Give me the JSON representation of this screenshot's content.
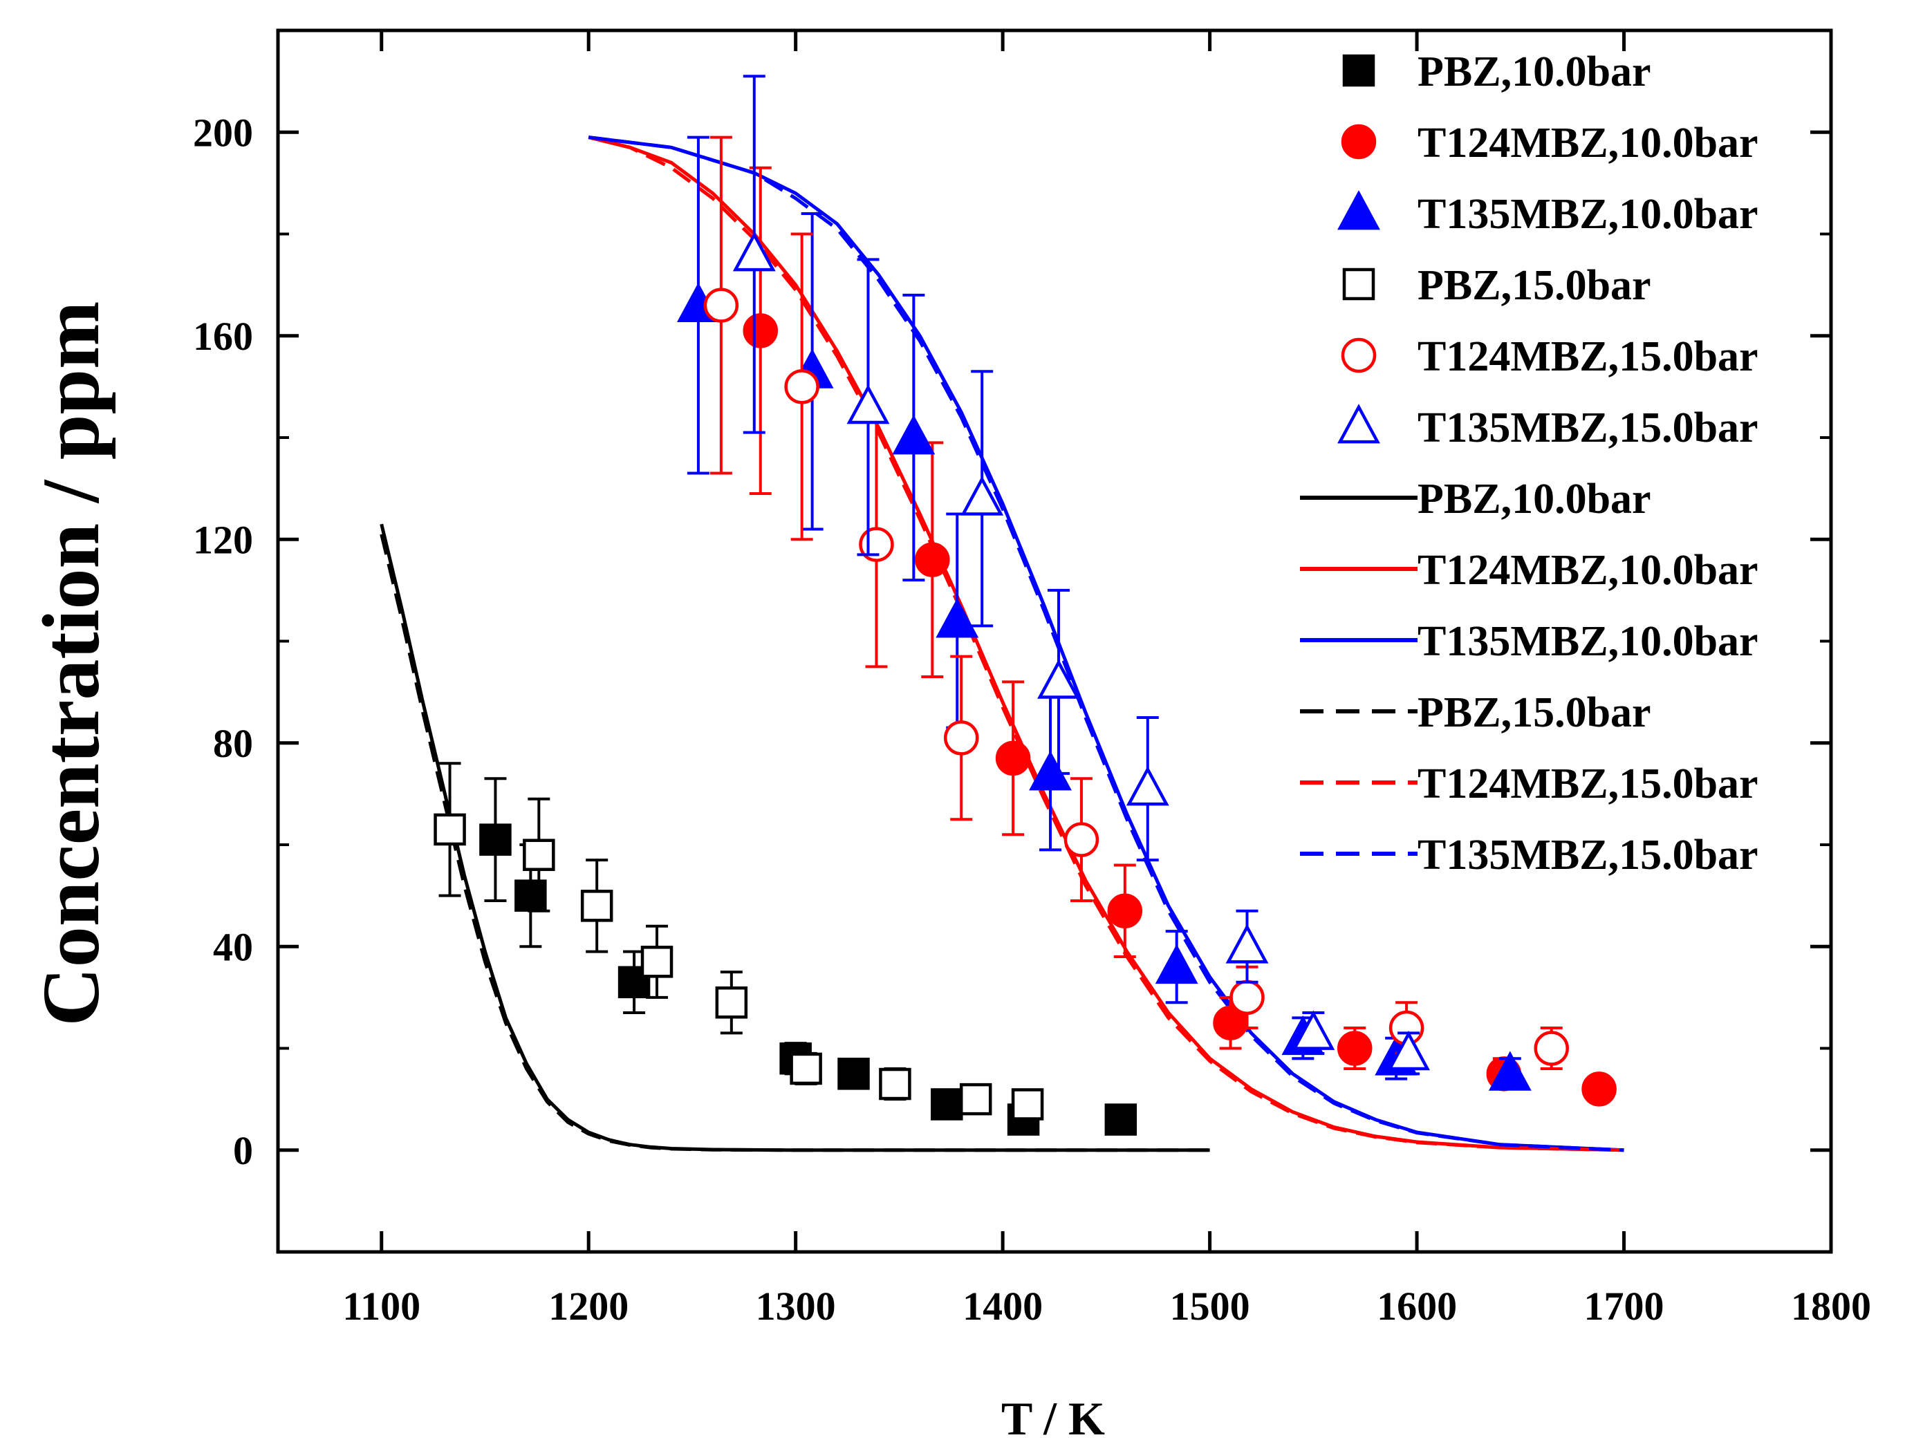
{
  "chart_data": {
    "type": "scatter",
    "xlabel": "T / K",
    "ylabel": "Concentration / ppm",
    "xlim": [
      1050,
      1800
    ],
    "ylim": [
      -20,
      220
    ],
    "x_ticks": [
      1100,
      1200,
      1300,
      1400,
      1500,
      1600,
      1700,
      1800
    ],
    "y_ticks": [
      0,
      40,
      80,
      120,
      160,
      200
    ],
    "grid": false,
    "legend_position": "top-right",
    "colors": {
      "black": "#000000",
      "red": "#ff0000",
      "blue": "#0000ff"
    },
    "series": [
      {
        "name": "PBZ,10.0bar",
        "kind": "marker",
        "marker": "square",
        "filled": true,
        "color": "#000000",
        "points": [
          {
            "x": 1155,
            "y": 61,
            "err": 12
          },
          {
            "x": 1172,
            "y": 50,
            "err": 10
          },
          {
            "x": 1222,
            "y": 33,
            "err": 6
          },
          {
            "x": 1300,
            "y": 18,
            "err": 3
          },
          {
            "x": 1328,
            "y": 15,
            "err": 2
          },
          {
            "x": 1373,
            "y": 9,
            "err": 2
          },
          {
            "x": 1410,
            "y": 6,
            "err": 2
          },
          {
            "x": 1457,
            "y": 6,
            "err": 2
          }
        ]
      },
      {
        "name": "T124MBZ,10.0bar",
        "kind": "marker",
        "marker": "circle",
        "filled": true,
        "color": "#ff0000",
        "points": [
          {
            "x": 1283,
            "y": 161,
            "err": 32
          },
          {
            "x": 1366,
            "y": 116,
            "err": 23
          },
          {
            "x": 1405,
            "y": 77,
            "err": 15
          },
          {
            "x": 1459,
            "y": 47,
            "err": 9
          },
          {
            "x": 1510,
            "y": 25,
            "err": 5
          },
          {
            "x": 1570,
            "y": 20,
            "err": 4
          },
          {
            "x": 1642,
            "y": 15,
            "err": 3
          },
          {
            "x": 1688,
            "y": 12,
            "err": 2
          }
        ]
      },
      {
        "name": "T135MBZ,10.0bar",
        "kind": "marker",
        "marker": "triangle",
        "filled": true,
        "color": "#0000ff",
        "points": [
          {
            "x": 1253,
            "y": 166,
            "err": 33
          },
          {
            "x": 1308,
            "y": 153,
            "err": 31
          },
          {
            "x": 1357,
            "y": 140,
            "err": 28
          },
          {
            "x": 1378,
            "y": 104,
            "err": 21
          },
          {
            "x": 1423,
            "y": 74,
            "err": 15
          },
          {
            "x": 1484,
            "y": 36,
            "err": 7
          },
          {
            "x": 1545,
            "y": 22,
            "err": 4
          },
          {
            "x": 1590,
            "y": 18,
            "err": 4
          },
          {
            "x": 1645,
            "y": 15,
            "err": 3
          }
        ]
      },
      {
        "name": "PBZ,15.0bar",
        "kind": "marker",
        "marker": "square",
        "filled": false,
        "color": "#000000",
        "points": [
          {
            "x": 1133,
            "y": 63,
            "err": 13
          },
          {
            "x": 1176,
            "y": 58,
            "err": 11
          },
          {
            "x": 1204,
            "y": 48,
            "err": 9
          },
          {
            "x": 1233,
            "y": 37,
            "err": 7
          },
          {
            "x": 1269,
            "y": 29,
            "err": 6
          },
          {
            "x": 1305,
            "y": 16,
            "err": 3
          },
          {
            "x": 1348,
            "y": 13,
            "err": 3
          },
          {
            "x": 1387,
            "y": 10,
            "err": 2
          },
          {
            "x": 1412,
            "y": 9,
            "err": 2
          }
        ]
      },
      {
        "name": "T124MBZ,15.0bar",
        "kind": "marker",
        "marker": "circle",
        "filled": false,
        "color": "#ff0000",
        "points": [
          {
            "x": 1264,
            "y": 166,
            "err": 33
          },
          {
            "x": 1303,
            "y": 150,
            "err": 30
          },
          {
            "x": 1339,
            "y": 119,
            "err": 24
          },
          {
            "x": 1380,
            "y": 81,
            "err": 16
          },
          {
            "x": 1438,
            "y": 61,
            "err": 12
          },
          {
            "x": 1518,
            "y": 30,
            "err": 6
          },
          {
            "x": 1595,
            "y": 24,
            "err": 5
          },
          {
            "x": 1665,
            "y": 20,
            "err": 4
          }
        ]
      },
      {
        "name": "T135MBZ,15.0bar",
        "kind": "marker",
        "marker": "triangle",
        "filled": false,
        "color": "#0000ff",
        "points": [
          {
            "x": 1280,
            "y": 176,
            "err": 35
          },
          {
            "x": 1335,
            "y": 146,
            "err": 29
          },
          {
            "x": 1390,
            "y": 128,
            "err": 25
          },
          {
            "x": 1427,
            "y": 92,
            "err": 18
          },
          {
            "x": 1470,
            "y": 71,
            "err": 14
          },
          {
            "x": 1518,
            "y": 40,
            "err": 7
          },
          {
            "x": 1550,
            "y": 23,
            "err": 4
          },
          {
            "x": 1596,
            "y": 19,
            "err": 4
          }
        ]
      },
      {
        "name": "PBZ,10.0bar",
        "kind": "line",
        "dash": false,
        "color": "#000000",
        "points": [
          [
            1100,
            123
          ],
          [
            1110,
            106
          ],
          [
            1120,
            88
          ],
          [
            1130,
            71
          ],
          [
            1140,
            54
          ],
          [
            1150,
            39
          ],
          [
            1160,
            26
          ],
          [
            1170,
            17
          ],
          [
            1180,
            10
          ],
          [
            1190,
            6
          ],
          [
            1200,
            3.5
          ],
          [
            1210,
            2
          ],
          [
            1220,
            1.1
          ],
          [
            1230,
            0.6
          ],
          [
            1240,
            0.3
          ],
          [
            1260,
            0.1
          ],
          [
            1300,
            0
          ],
          [
            1400,
            0
          ],
          [
            1500,
            0
          ]
        ]
      },
      {
        "name": "T124MBZ,10.0bar",
        "kind": "line",
        "dash": false,
        "color": "#ff0000",
        "points": [
          [
            1200,
            199
          ],
          [
            1220,
            197
          ],
          [
            1240,
            194
          ],
          [
            1260,
            188
          ],
          [
            1280,
            180
          ],
          [
            1300,
            170
          ],
          [
            1320,
            157
          ],
          [
            1340,
            142
          ],
          [
            1360,
            125
          ],
          [
            1380,
            107
          ],
          [
            1400,
            88
          ],
          [
            1420,
            70
          ],
          [
            1440,
            53
          ],
          [
            1460,
            39
          ],
          [
            1480,
            27
          ],
          [
            1500,
            18
          ],
          [
            1520,
            12
          ],
          [
            1540,
            7.5
          ],
          [
            1560,
            4.5
          ],
          [
            1580,
            2.7
          ],
          [
            1600,
            1.6
          ],
          [
            1640,
            0.5
          ],
          [
            1700,
            0
          ]
        ]
      },
      {
        "name": "T135MBZ,10.0bar",
        "kind": "line",
        "dash": false,
        "color": "#0000ff",
        "points": [
          [
            1200,
            199
          ],
          [
            1240,
            197
          ],
          [
            1280,
            192
          ],
          [
            1300,
            188
          ],
          [
            1320,
            182
          ],
          [
            1340,
            172
          ],
          [
            1360,
            160
          ],
          [
            1380,
            145
          ],
          [
            1400,
            127
          ],
          [
            1420,
            107
          ],
          [
            1440,
            86
          ],
          [
            1460,
            66
          ],
          [
            1480,
            48
          ],
          [
            1500,
            34
          ],
          [
            1520,
            23
          ],
          [
            1540,
            15
          ],
          [
            1560,
            9.5
          ],
          [
            1580,
            6
          ],
          [
            1600,
            3.5
          ],
          [
            1640,
            1.1
          ],
          [
            1700,
            0
          ]
        ]
      },
      {
        "name": "PBZ,15.0bar",
        "kind": "line",
        "dash": true,
        "color": "#000000",
        "points": [
          [
            1100,
            121
          ],
          [
            1110,
            104
          ],
          [
            1120,
            86
          ],
          [
            1130,
            69
          ],
          [
            1140,
            52
          ],
          [
            1150,
            37
          ],
          [
            1160,
            25
          ],
          [
            1170,
            16
          ],
          [
            1180,
            9.5
          ],
          [
            1190,
            5.5
          ],
          [
            1200,
            3.2
          ],
          [
            1210,
            1.8
          ],
          [
            1220,
            1
          ],
          [
            1230,
            0.5
          ],
          [
            1240,
            0.25
          ],
          [
            1260,
            0.08
          ],
          [
            1300,
            0
          ],
          [
            1400,
            0
          ],
          [
            1500,
            0
          ]
        ]
      },
      {
        "name": "T124MBZ,15.0bar",
        "kind": "line",
        "dash": true,
        "color": "#ff0000",
        "points": [
          [
            1200,
            199
          ],
          [
            1220,
            197
          ],
          [
            1240,
            193
          ],
          [
            1260,
            187
          ],
          [
            1280,
            179
          ],
          [
            1300,
            169
          ],
          [
            1320,
            156
          ],
          [
            1340,
            141
          ],
          [
            1360,
            124
          ],
          [
            1380,
            106
          ],
          [
            1400,
            87
          ],
          [
            1420,
            69
          ],
          [
            1440,
            52
          ],
          [
            1460,
            38
          ],
          [
            1480,
            26
          ],
          [
            1500,
            17.5
          ],
          [
            1520,
            11.5
          ],
          [
            1540,
            7.2
          ],
          [
            1560,
            4.3
          ],
          [
            1580,
            2.6
          ],
          [
            1600,
            1.5
          ],
          [
            1640,
            0.5
          ],
          [
            1700,
            0
          ]
        ]
      },
      {
        "name": "T135MBZ,15.0bar",
        "kind": "line",
        "dash": true,
        "color": "#0000ff",
        "points": [
          [
            1200,
            199
          ],
          [
            1240,
            197
          ],
          [
            1280,
            192
          ],
          [
            1300,
            187
          ],
          [
            1320,
            181
          ],
          [
            1340,
            171
          ],
          [
            1360,
            159
          ],
          [
            1380,
            144
          ],
          [
            1400,
            126
          ],
          [
            1420,
            106
          ],
          [
            1440,
            85
          ],
          [
            1460,
            65
          ],
          [
            1480,
            47
          ],
          [
            1500,
            33
          ],
          [
            1520,
            22.5
          ],
          [
            1540,
            14.5
          ],
          [
            1560,
            9.2
          ],
          [
            1580,
            5.8
          ],
          [
            1600,
            3.4
          ],
          [
            1640,
            1.1
          ],
          [
            1700,
            0
          ]
        ]
      }
    ]
  }
}
